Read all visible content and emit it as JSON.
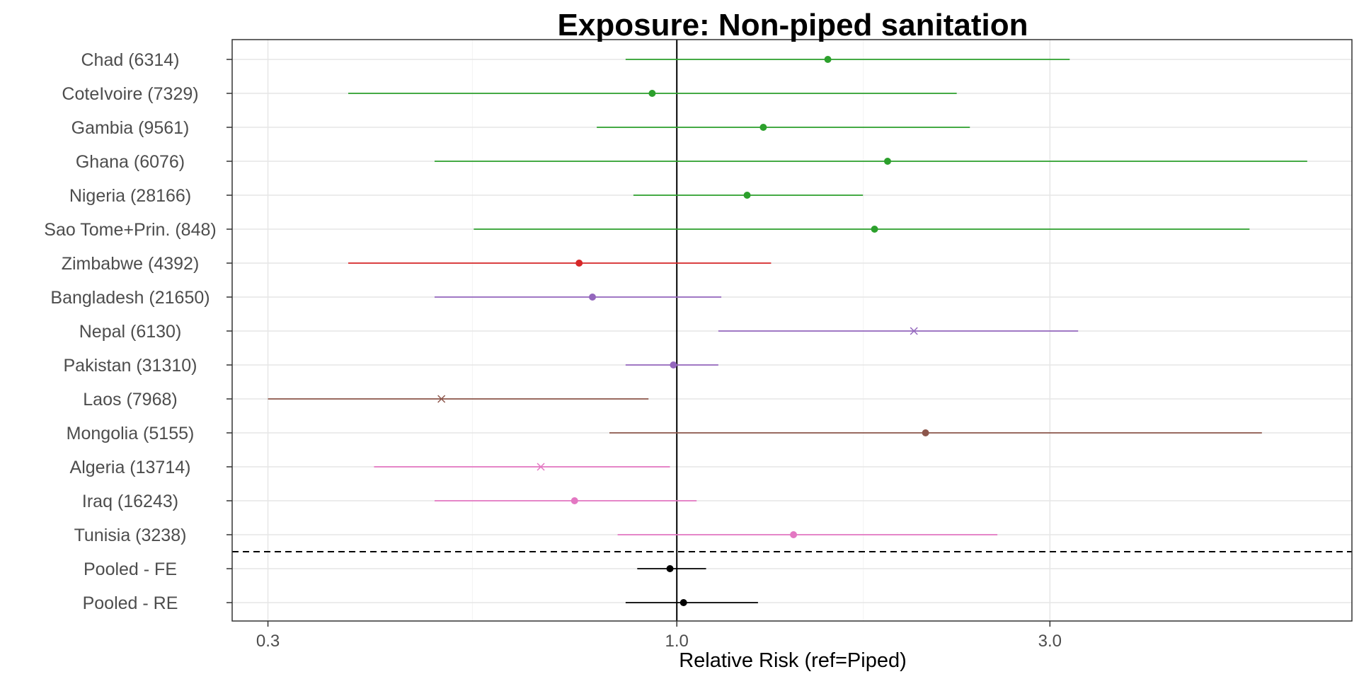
{
  "chart_data": {
    "type": "forest",
    "title": "Exposure: Non-piped sanitation",
    "xlabel": "Relative Risk (ref=Piped)",
    "ylabel": "",
    "x_scale": "log",
    "xlim": [
      0.27,
      7.3
    ],
    "x_ticks": [
      0.3,
      1.0,
      3.0
    ],
    "x_tick_labels": [
      "0.3",
      "1.0",
      "3.0"
    ],
    "reference_line": 1.0,
    "grid": true,
    "separator_after": "Tunisia (3238)",
    "rows": [
      {
        "label": "Chad (6314)",
        "estimate": 1.56,
        "lower": 0.86,
        "upper": 3.18,
        "marker": "circle",
        "color": "#2ca02c"
      },
      {
        "label": "CoteIvoire (7329)",
        "estimate": 0.93,
        "lower": 0.38,
        "upper": 2.28,
        "marker": "circle",
        "color": "#2ca02c"
      },
      {
        "label": "Gambia (9561)",
        "estimate": 1.29,
        "lower": 0.79,
        "upper": 2.37,
        "marker": "circle",
        "color": "#2ca02c"
      },
      {
        "label": "Ghana (6076)",
        "estimate": 1.86,
        "lower": 0.49,
        "upper": 6.4,
        "marker": "circle",
        "color": "#2ca02c"
      },
      {
        "label": "Nigeria (28166)",
        "estimate": 1.23,
        "lower": 0.88,
        "upper": 1.73,
        "marker": "circle",
        "color": "#2ca02c"
      },
      {
        "label": "Sao Tome+Prin. (848)",
        "estimate": 1.79,
        "lower": 0.55,
        "upper": 5.4,
        "marker": "circle",
        "color": "#2ca02c"
      },
      {
        "label": "Zimbabwe (4392)",
        "estimate": 0.75,
        "lower": 0.38,
        "upper": 1.32,
        "marker": "circle",
        "color": "#d62728"
      },
      {
        "label": "Bangladesh (21650)",
        "estimate": 0.78,
        "lower": 0.49,
        "upper": 1.14,
        "marker": "circle",
        "color": "#9467bd"
      },
      {
        "label": "Nepal (6130)",
        "estimate": 2.01,
        "lower": 1.13,
        "upper": 3.26,
        "marker": "cross",
        "color": "#9467bd"
      },
      {
        "label": "Pakistan (31310)",
        "estimate": 0.99,
        "lower": 0.86,
        "upper": 1.13,
        "marker": "circle",
        "color": "#9467bd"
      },
      {
        "label": "Laos (7968)",
        "estimate": 0.5,
        "lower": 0.3,
        "upper": 0.92,
        "marker": "cross",
        "color": "#8c564b"
      },
      {
        "label": "Mongolia (5155)",
        "estimate": 2.08,
        "lower": 0.82,
        "upper": 5.6,
        "marker": "circle",
        "color": "#8c564b"
      },
      {
        "label": "Algeria (13714)",
        "estimate": 0.67,
        "lower": 0.41,
        "upper": 0.98,
        "marker": "cross",
        "color": "#e377c2"
      },
      {
        "label": "Iraq (16243)",
        "estimate": 0.74,
        "lower": 0.49,
        "upper": 1.06,
        "marker": "circle",
        "color": "#e377c2"
      },
      {
        "label": "Tunisia (3238)",
        "estimate": 1.41,
        "lower": 0.84,
        "upper": 2.57,
        "marker": "circle",
        "color": "#e377c2"
      },
      {
        "label": "Pooled - FE",
        "estimate": 0.98,
        "lower": 0.89,
        "upper": 1.09,
        "marker": "circle",
        "color": "#000000"
      },
      {
        "label": "Pooled - RE",
        "estimate": 1.02,
        "lower": 0.86,
        "upper": 1.27,
        "marker": "circle",
        "color": "#000000"
      }
    ]
  }
}
